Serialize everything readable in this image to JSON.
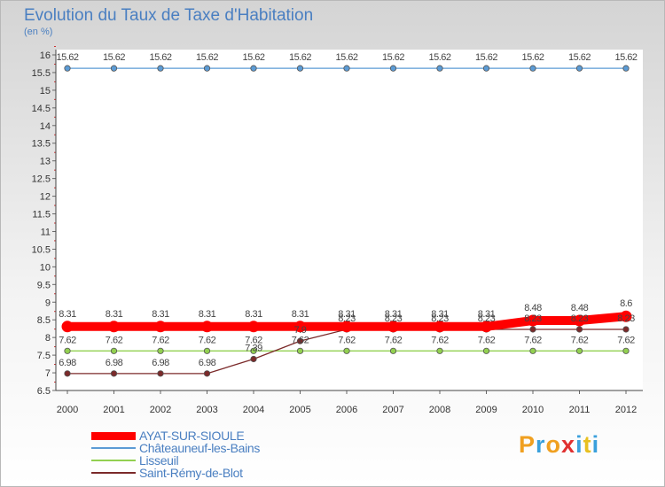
{
  "header": {
    "title": "Evolution du Taux de Taxe d'Habitation",
    "unit": "(en %)"
  },
  "brand": {
    "logo": "Proxiti"
  },
  "chart_data": {
    "type": "line",
    "title": "Evolution du Taux de Taxe d'Habitation",
    "ylabel": "(en %)",
    "xlabel": "",
    "x": [
      "2000",
      "2001",
      "2002",
      "2003",
      "2004",
      "2005",
      "2006",
      "2007",
      "2008",
      "2009",
      "2010",
      "2011",
      "2012"
    ],
    "ylim": [
      6.5,
      16
    ],
    "yticks": [
      "6.5",
      "7",
      "7.5",
      "8",
      "8.5",
      "9",
      "9.5",
      "10",
      "10.5",
      "11",
      "11.5",
      "12",
      "12.5",
      "13",
      "13.5",
      "14",
      "14.5",
      "15",
      "15.5",
      "16"
    ],
    "grid": false,
    "legend": "bottom-left",
    "series": [
      {
        "name": "AYAT-SUR-SIOULE",
        "color": "#ff0000",
        "values": [
          8.31,
          8.31,
          8.31,
          8.31,
          8.31,
          8.31,
          8.31,
          8.31,
          8.31,
          8.31,
          8.48,
          8.48,
          8.6
        ],
        "labels": [
          "8.31",
          "8.31",
          "8.31",
          "8.31",
          "8.31",
          "8.31",
          "8.31",
          "8.31",
          "8.31",
          "8.31",
          "8.48",
          "8.48",
          "8.6"
        ]
      },
      {
        "name": "Châteauneuf-les-Bains",
        "color": "#5b9bd5",
        "values": [
          15.62,
          15.62,
          15.62,
          15.62,
          15.62,
          15.62,
          15.62,
          15.62,
          15.62,
          15.62,
          15.62,
          15.62,
          15.62
        ],
        "labels": [
          "15.62",
          "15.62",
          "15.62",
          "15.62",
          "15.62",
          "15.62",
          "15.62",
          "15.62",
          "15.62",
          "15.62",
          "15.62",
          "15.62",
          "15.62"
        ]
      },
      {
        "name": "Lisseuil",
        "color": "#92d050",
        "values": [
          7.62,
          7.62,
          7.62,
          7.62,
          7.62,
          7.62,
          7.62,
          7.62,
          7.62,
          7.62,
          7.62,
          7.62,
          7.62
        ],
        "labels": [
          "7.62",
          "7.62",
          "7.62",
          "7.62",
          "7.62",
          "7.62",
          "7.62",
          "7.62",
          "7.62",
          "7.62",
          "7.62",
          "7.62",
          "7.62"
        ]
      },
      {
        "name": "Saint-Rémy-de-Blot",
        "color": "#7b2a2a",
        "values": [
          6.98,
          6.98,
          6.98,
          6.98,
          7.39,
          7.9,
          8.23,
          8.23,
          8.23,
          8.23,
          8.23,
          8.23,
          8.23
        ],
        "labels": [
          "6.98",
          "6.98",
          "6.98",
          "6.98",
          "7.39",
          "7.9",
          "8.23",
          "8.23",
          "8.23",
          "8.23",
          "8.23",
          "8.23",
          "8.23"
        ]
      }
    ]
  }
}
